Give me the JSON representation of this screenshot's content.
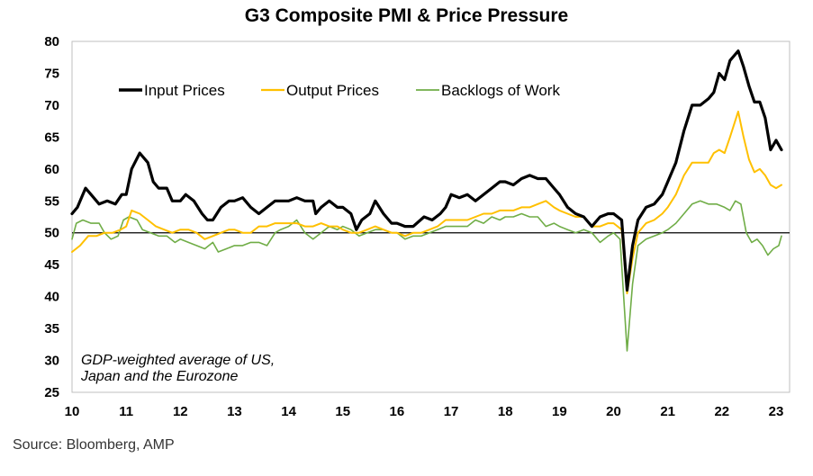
{
  "title": "G3 Composite PMI & Price Pressure",
  "source": "Source: Bloomberg, AMP",
  "chart_data": {
    "type": "line",
    "title": "G3 Composite PMI & Price Pressure",
    "xlabel": "",
    "ylabel": "",
    "x_ticks": [
      "10",
      "11",
      "12",
      "13",
      "14",
      "15",
      "16",
      "17",
      "18",
      "19",
      "20",
      "21",
      "22",
      "23"
    ],
    "x_range": [
      2010.0,
      2023.25
    ],
    "ylim": [
      25,
      80
    ],
    "y_ticks": [
      25,
      30,
      35,
      40,
      45,
      50,
      55,
      60,
      65,
      70,
      75,
      80
    ],
    "reference_line": 50,
    "grid": false,
    "legend_position": "top-left",
    "annotation": [
      "GDP-weighted average of US,",
      "Japan and the Eurozone"
    ],
    "series": [
      {
        "name": "Input Prices",
        "color": "#000000",
        "points": [
          [
            2010.0,
            53
          ],
          [
            2010.1,
            54
          ],
          [
            2010.25,
            57
          ],
          [
            2010.35,
            56
          ],
          [
            2010.5,
            54.5
          ],
          [
            2010.65,
            55
          ],
          [
            2010.8,
            54.5
          ],
          [
            2010.92,
            56
          ],
          [
            2011.0,
            56
          ],
          [
            2011.1,
            60
          ],
          [
            2011.25,
            62.5
          ],
          [
            2011.4,
            61
          ],
          [
            2011.5,
            58
          ],
          [
            2011.6,
            57
          ],
          [
            2011.75,
            57
          ],
          [
            2011.85,
            55
          ],
          [
            2012.0,
            55
          ],
          [
            2012.1,
            56
          ],
          [
            2012.25,
            55
          ],
          [
            2012.4,
            53
          ],
          [
            2012.5,
            52
          ],
          [
            2012.6,
            52
          ],
          [
            2012.75,
            54
          ],
          [
            2012.9,
            55
          ],
          [
            2013.0,
            55
          ],
          [
            2013.15,
            55.5
          ],
          [
            2013.3,
            54
          ],
          [
            2013.45,
            53
          ],
          [
            2013.6,
            54
          ],
          [
            2013.75,
            55
          ],
          [
            2013.9,
            55
          ],
          [
            2014.0,
            55
          ],
          [
            2014.15,
            55.5
          ],
          [
            2014.3,
            55
          ],
          [
            2014.45,
            55
          ],
          [
            2014.5,
            53
          ],
          [
            2014.6,
            54
          ],
          [
            2014.75,
            55
          ],
          [
            2014.9,
            54
          ],
          [
            2015.0,
            54
          ],
          [
            2015.15,
            53
          ],
          [
            2015.25,
            50.5
          ],
          [
            2015.35,
            52
          ],
          [
            2015.5,
            53
          ],
          [
            2015.6,
            55
          ],
          [
            2015.75,
            53
          ],
          [
            2015.9,
            51.5
          ],
          [
            2016.0,
            51.5
          ],
          [
            2016.15,
            51
          ],
          [
            2016.3,
            51
          ],
          [
            2016.5,
            52.5
          ],
          [
            2016.65,
            52
          ],
          [
            2016.8,
            53
          ],
          [
            2016.9,
            54
          ],
          [
            2017.0,
            56
          ],
          [
            2017.15,
            55.5
          ],
          [
            2017.3,
            56
          ],
          [
            2017.45,
            55
          ],
          [
            2017.6,
            56
          ],
          [
            2017.75,
            57
          ],
          [
            2017.9,
            58
          ],
          [
            2018.0,
            58
          ],
          [
            2018.15,
            57.5
          ],
          [
            2018.3,
            58.5
          ],
          [
            2018.45,
            59
          ],
          [
            2018.6,
            58.5
          ],
          [
            2018.75,
            58.5
          ],
          [
            2018.9,
            57
          ],
          [
            2019.0,
            56
          ],
          [
            2019.15,
            54
          ],
          [
            2019.3,
            53
          ],
          [
            2019.45,
            52.5
          ],
          [
            2019.6,
            51
          ],
          [
            2019.75,
            52.5
          ],
          [
            2019.9,
            53
          ],
          [
            2020.0,
            53
          ],
          [
            2020.15,
            52
          ],
          [
            2020.25,
            41
          ],
          [
            2020.35,
            48
          ],
          [
            2020.45,
            52
          ],
          [
            2020.6,
            54
          ],
          [
            2020.75,
            54.5
          ],
          [
            2020.9,
            56
          ],
          [
            2021.0,
            58
          ],
          [
            2021.15,
            61
          ],
          [
            2021.3,
            66
          ],
          [
            2021.45,
            70
          ],
          [
            2021.6,
            70
          ],
          [
            2021.75,
            71
          ],
          [
            2021.85,
            72
          ],
          [
            2021.95,
            75
          ],
          [
            2022.05,
            74
          ],
          [
            2022.15,
            77
          ],
          [
            2022.3,
            78.5
          ],
          [
            2022.4,
            76
          ],
          [
            2022.5,
            73
          ],
          [
            2022.6,
            70.5
          ],
          [
            2022.7,
            70.5
          ],
          [
            2022.8,
            68
          ],
          [
            2022.9,
            63
          ],
          [
            2023.0,
            64.5
          ],
          [
            2023.1,
            63
          ]
        ]
      },
      {
        "name": "Output Prices",
        "color": "#FFC000",
        "points": [
          [
            2010.0,
            47
          ],
          [
            2010.15,
            48
          ],
          [
            2010.3,
            49.5
          ],
          [
            2010.45,
            49.5
          ],
          [
            2010.6,
            50
          ],
          [
            2010.75,
            50
          ],
          [
            2010.9,
            50.5
          ],
          [
            2011.0,
            51
          ],
          [
            2011.1,
            53.5
          ],
          [
            2011.25,
            53
          ],
          [
            2011.4,
            52
          ],
          [
            2011.55,
            51
          ],
          [
            2011.7,
            50.5
          ],
          [
            2011.85,
            50
          ],
          [
            2012.0,
            50.5
          ],
          [
            2012.15,
            50.5
          ],
          [
            2012.3,
            50
          ],
          [
            2012.45,
            49
          ],
          [
            2012.6,
            49.5
          ],
          [
            2012.75,
            50
          ],
          [
            2012.9,
            50.5
          ],
          [
            2013.0,
            50.5
          ],
          [
            2013.15,
            50
          ],
          [
            2013.3,
            50
          ],
          [
            2013.45,
            51
          ],
          [
            2013.6,
            51
          ],
          [
            2013.75,
            51.5
          ],
          [
            2013.9,
            51.5
          ],
          [
            2014.0,
            51.5
          ],
          [
            2014.15,
            51.5
          ],
          [
            2014.3,
            51
          ],
          [
            2014.45,
            51
          ],
          [
            2014.6,
            51.5
          ],
          [
            2014.75,
            51
          ],
          [
            2014.9,
            51
          ],
          [
            2015.0,
            50.5
          ],
          [
            2015.15,
            50
          ],
          [
            2015.3,
            50
          ],
          [
            2015.45,
            50.5
          ],
          [
            2015.6,
            51
          ],
          [
            2015.75,
            50.5
          ],
          [
            2015.9,
            50
          ],
          [
            2016.0,
            50
          ],
          [
            2016.15,
            49.5
          ],
          [
            2016.3,
            50
          ],
          [
            2016.45,
            50
          ],
          [
            2016.6,
            50.5
          ],
          [
            2016.75,
            51
          ],
          [
            2016.9,
            52
          ],
          [
            2017.0,
            52
          ],
          [
            2017.15,
            52
          ],
          [
            2017.3,
            52
          ],
          [
            2017.45,
            52.5
          ],
          [
            2017.6,
            53
          ],
          [
            2017.75,
            53
          ],
          [
            2017.9,
            53.5
          ],
          [
            2018.0,
            53.5
          ],
          [
            2018.15,
            53.5
          ],
          [
            2018.3,
            54
          ],
          [
            2018.45,
            54
          ],
          [
            2018.6,
            54.5
          ],
          [
            2018.75,
            55
          ],
          [
            2018.9,
            54
          ],
          [
            2019.0,
            53.5
          ],
          [
            2019.15,
            53
          ],
          [
            2019.3,
            52.5
          ],
          [
            2019.45,
            52.5
          ],
          [
            2019.6,
            51
          ],
          [
            2019.75,
            51
          ],
          [
            2019.9,
            51.5
          ],
          [
            2020.0,
            51.5
          ],
          [
            2020.15,
            50.5
          ],
          [
            2020.25,
            40.5
          ],
          [
            2020.35,
            46
          ],
          [
            2020.45,
            50
          ],
          [
            2020.6,
            51.5
          ],
          [
            2020.75,
            52
          ],
          [
            2020.9,
            53
          ],
          [
            2021.0,
            54
          ],
          [
            2021.15,
            56
          ],
          [
            2021.3,
            59
          ],
          [
            2021.45,
            61
          ],
          [
            2021.6,
            61
          ],
          [
            2021.75,
            61
          ],
          [
            2021.85,
            62.5
          ],
          [
            2021.95,
            63
          ],
          [
            2022.05,
            62.5
          ],
          [
            2022.15,
            65
          ],
          [
            2022.3,
            69
          ],
          [
            2022.4,
            65
          ],
          [
            2022.5,
            61.5
          ],
          [
            2022.6,
            59.5
          ],
          [
            2022.7,
            60
          ],
          [
            2022.8,
            59
          ],
          [
            2022.9,
            57.5
          ],
          [
            2023.0,
            57
          ],
          [
            2023.1,
            57.5
          ]
        ]
      },
      {
        "name": "Backlogs of Work",
        "color": "#70AD47",
        "points": [
          [
            2010.0,
            49
          ],
          [
            2010.08,
            51.5
          ],
          [
            2010.2,
            52
          ],
          [
            2010.35,
            51.5
          ],
          [
            2010.5,
            51.5
          ],
          [
            2010.6,
            50
          ],
          [
            2010.72,
            49
          ],
          [
            2010.85,
            49.5
          ],
          [
            2010.95,
            52
          ],
          [
            2011.05,
            52.5
          ],
          [
            2011.2,
            52
          ],
          [
            2011.3,
            50.5
          ],
          [
            2011.45,
            50
          ],
          [
            2011.6,
            49.5
          ],
          [
            2011.75,
            49.5
          ],
          [
            2011.9,
            48.5
          ],
          [
            2012.0,
            49
          ],
          [
            2012.15,
            48.5
          ],
          [
            2012.3,
            48
          ],
          [
            2012.45,
            47.5
          ],
          [
            2012.6,
            48.5
          ],
          [
            2012.7,
            47
          ],
          [
            2012.85,
            47.5
          ],
          [
            2013.0,
            48
          ],
          [
            2013.15,
            48
          ],
          [
            2013.3,
            48.5
          ],
          [
            2013.45,
            48.5
          ],
          [
            2013.6,
            48
          ],
          [
            2013.75,
            50
          ],
          [
            2013.85,
            50.5
          ],
          [
            2014.0,
            51
          ],
          [
            2014.15,
            52
          ],
          [
            2014.3,
            50
          ],
          [
            2014.45,
            49
          ],
          [
            2014.6,
            50
          ],
          [
            2014.75,
            51
          ],
          [
            2014.9,
            50.5
          ],
          [
            2015.0,
            51
          ],
          [
            2015.15,
            50.5
          ],
          [
            2015.3,
            49.5
          ],
          [
            2015.45,
            50
          ],
          [
            2015.6,
            50.5
          ],
          [
            2015.75,
            50.5
          ],
          [
            2015.9,
            50
          ],
          [
            2016.0,
            50
          ],
          [
            2016.15,
            49
          ],
          [
            2016.3,
            49.5
          ],
          [
            2016.45,
            49.5
          ],
          [
            2016.6,
            50
          ],
          [
            2016.75,
            50.5
          ],
          [
            2016.9,
            51
          ],
          [
            2017.0,
            51
          ],
          [
            2017.15,
            51
          ],
          [
            2017.3,
            51
          ],
          [
            2017.45,
            52
          ],
          [
            2017.6,
            51.5
          ],
          [
            2017.75,
            52.5
          ],
          [
            2017.9,
            52
          ],
          [
            2018.0,
            52.5
          ],
          [
            2018.15,
            52.5
          ],
          [
            2018.3,
            53
          ],
          [
            2018.45,
            52.5
          ],
          [
            2018.6,
            52.5
          ],
          [
            2018.75,
            51
          ],
          [
            2018.9,
            51.5
          ],
          [
            2019.0,
            51
          ],
          [
            2019.15,
            50.5
          ],
          [
            2019.3,
            50
          ],
          [
            2019.45,
            50.5
          ],
          [
            2019.6,
            50
          ],
          [
            2019.75,
            48.5
          ],
          [
            2019.9,
            49.5
          ],
          [
            2020.0,
            50
          ],
          [
            2020.12,
            49
          ],
          [
            2020.25,
            31.5
          ],
          [
            2020.35,
            42
          ],
          [
            2020.45,
            48
          ],
          [
            2020.6,
            49
          ],
          [
            2020.75,
            49.5
          ],
          [
            2020.9,
            50
          ],
          [
            2021.0,
            50.5
          ],
          [
            2021.15,
            51.5
          ],
          [
            2021.3,
            53
          ],
          [
            2021.45,
            54.5
          ],
          [
            2021.6,
            55
          ],
          [
            2021.75,
            54.5
          ],
          [
            2021.9,
            54.5
          ],
          [
            2022.05,
            54
          ],
          [
            2022.15,
            53.5
          ],
          [
            2022.25,
            55
          ],
          [
            2022.35,
            54.5
          ],
          [
            2022.45,
            50
          ],
          [
            2022.55,
            48.5
          ],
          [
            2022.65,
            49
          ],
          [
            2022.75,
            48
          ],
          [
            2022.85,
            46.5
          ],
          [
            2022.95,
            47.5
          ],
          [
            2023.05,
            48
          ],
          [
            2023.1,
            49.5
          ]
        ]
      }
    ]
  }
}
